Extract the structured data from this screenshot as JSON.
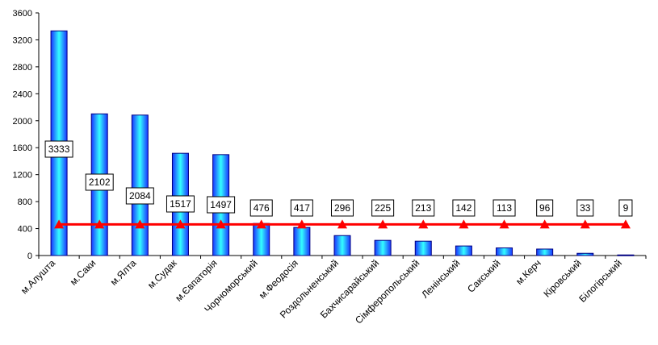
{
  "chart_data": {
    "type": "bar",
    "categories": [
      "м.Алушта",
      "м.Саки",
      "м.Ялта",
      "м.Судак",
      "м.Євпаторія",
      "Чорноморський",
      "м.Феодосія",
      "Роздольненський",
      "Бахчисарайський",
      "Сімферопольський",
      "Ленінський",
      "Сакський",
      "м.Керч",
      "Кіровський",
      "Білогірський"
    ],
    "series": [
      {
        "type": "bar",
        "values": [
          3333,
          2102,
          2084,
          1517,
          1497,
          476,
          417,
          296,
          225,
          213,
          142,
          113,
          96,
          33,
          9
        ]
      },
      {
        "type": "line",
        "values": [
          462,
          462,
          462,
          462,
          462,
          462,
          462,
          462,
          462,
          462,
          462,
          462,
          462,
          462,
          462
        ]
      }
    ],
    "ylim": [
      0,
      3600
    ],
    "yticks": [
      "0",
      "400",
      "800",
      "1200",
      "1600",
      "2000",
      "2400",
      "2800",
      "3200",
      "3600"
    ],
    "data_labels": [
      "3333",
      "2102",
      "2084",
      "1517",
      "1497",
      "476",
      "417",
      "296",
      "225",
      "213",
      "142",
      "113",
      "96",
      "33",
      "9"
    ],
    "grid": false,
    "legend": "none",
    "colors": {
      "bar_edge": "#000080",
      "bar_center": "#33ffff",
      "bar_side": "#1a33ff",
      "line": "#ff0000",
      "marker": "#ff0000"
    }
  }
}
